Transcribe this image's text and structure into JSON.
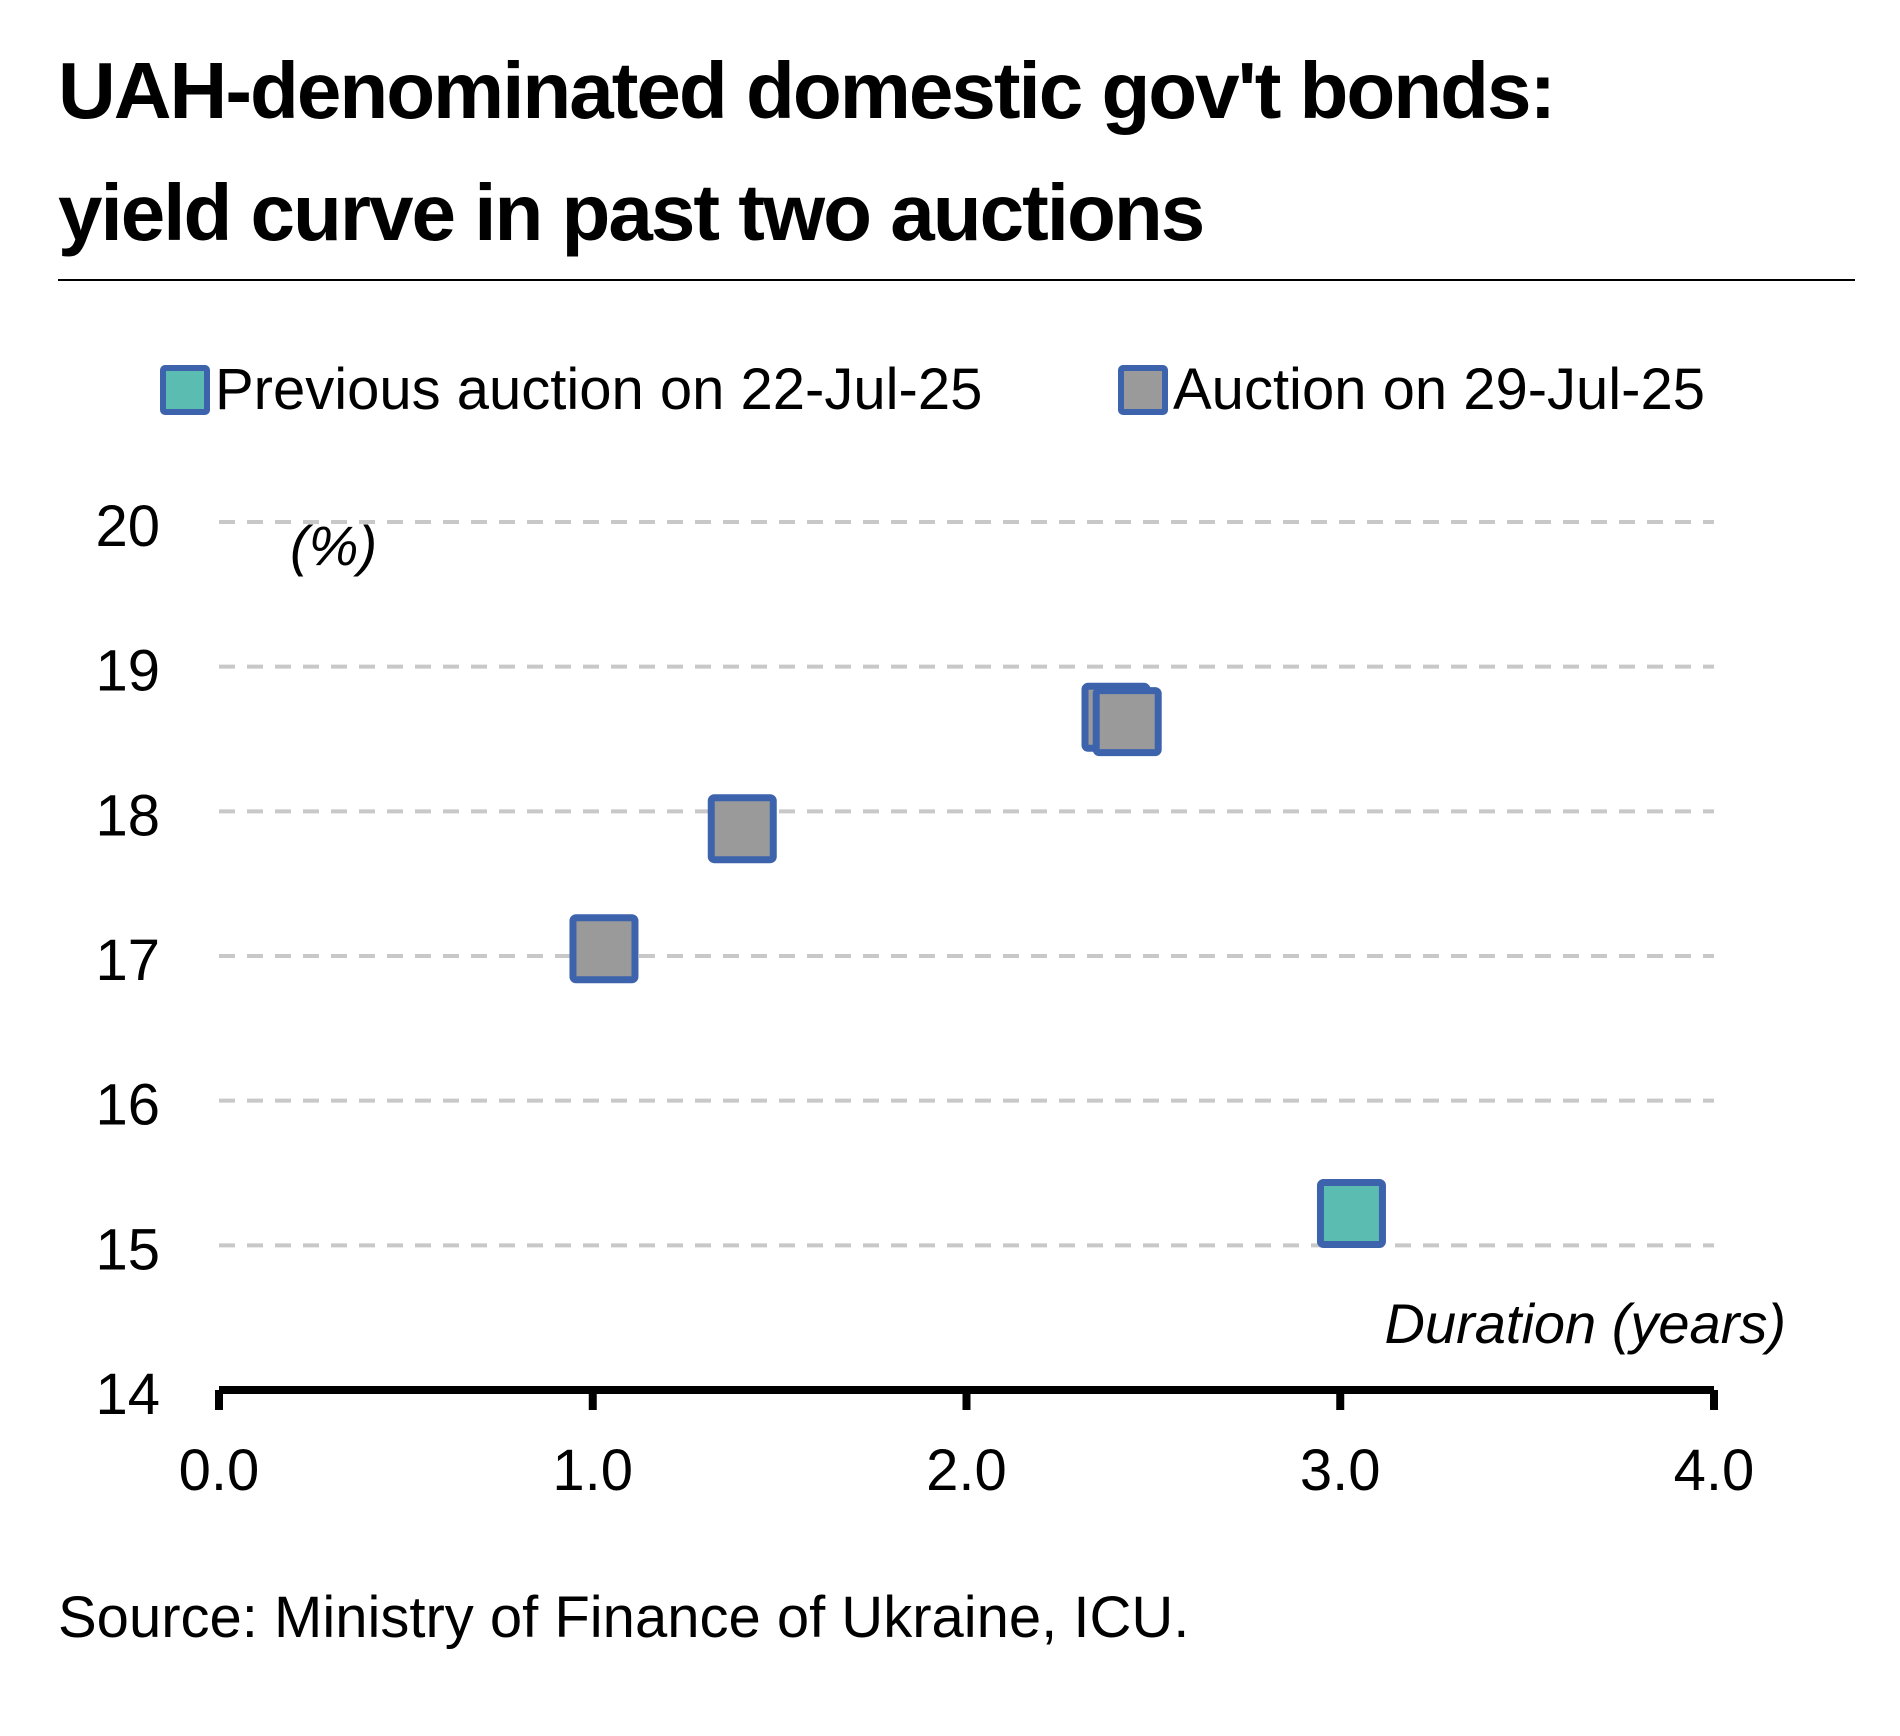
{
  "title": {
    "line1": "UAH-denominated domestic gov't bonds:",
    "line2": "yield curve in past two auctions"
  },
  "source": "Source: Ministry of Finance of Ukraine, ICU.",
  "chart_data": {
    "type": "scatter",
    "title": "UAH-denominated domestic gov't bonds: yield curve in past two auctions",
    "xlabel": "Duration (years)",
    "ylabel": "(%)",
    "xlim": [
      0,
      4
    ],
    "ylim": [
      14,
      20
    ],
    "x_ticks": [
      "0.0",
      "1.0",
      "2.0",
      "3.0",
      "4.0"
    ],
    "x_tick_values": [
      0,
      1,
      2,
      3,
      4
    ],
    "y_ticks": [
      "14",
      "15",
      "16",
      "17",
      "18",
      "19",
      "20"
    ],
    "y_tick_values": [
      14,
      15,
      16,
      17,
      18,
      19,
      20
    ],
    "grid": "horizontal dashed",
    "legend_position": "top",
    "series": [
      {
        "name": "Previous auction on 22-Jul-25",
        "color": "#5bbcb2",
        "edge_color": "#3d63ad",
        "points": [
          {
            "x": 3.03,
            "y": 15.22
          }
        ]
      },
      {
        "name": "Auction on 29-Jul-25",
        "color": "#9a9a9a",
        "edge_color": "#3d63ad",
        "points": [
          {
            "x": 1.03,
            "y": 17.05
          },
          {
            "x": 1.4,
            "y": 17.88
          },
          {
            "x": 2.4,
            "y": 18.65
          },
          {
            "x": 2.43,
            "y": 18.62
          }
        ]
      }
    ]
  }
}
